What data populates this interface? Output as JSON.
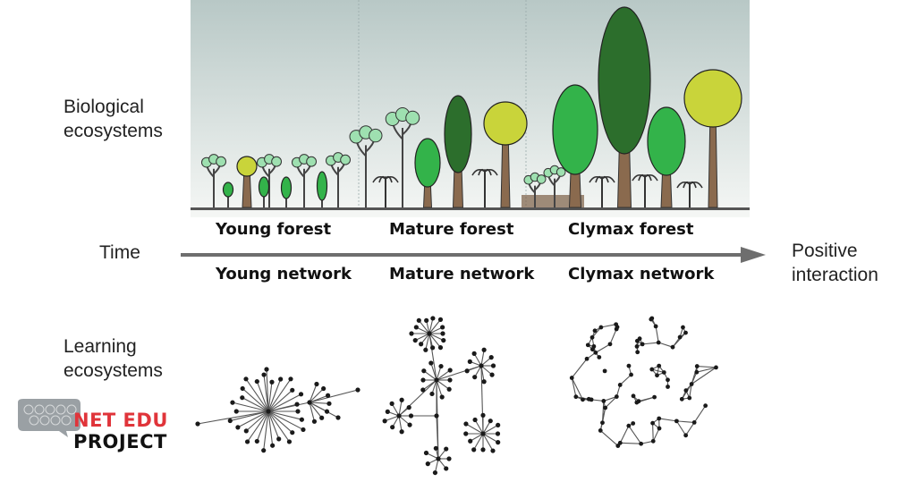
{
  "rows": {
    "biological": "Biological\necosystems",
    "learning": "Learning\necosystems"
  },
  "stages": {
    "forest": [
      "Young forest",
      "Mature forest",
      "Clymax forest"
    ],
    "network": [
      "Young network",
      "Mature network",
      "Clymax network"
    ]
  },
  "time_axis": {
    "label": "Time",
    "end_label": "Positive\ninteraction"
  },
  "logo": {
    "line1": "NET EDU",
    "line2": "PROJECT"
  },
  "colors": {
    "sky_top": "#b8c8c6",
    "sky_bottom": "#f4f6f4",
    "light_leaf": "#9ee0b0",
    "bright_leaf": "#33b34a",
    "dark_leaf": "#2c6e2c",
    "yellow_leaf": "#c9d43a",
    "trunk": "#8a6a4e",
    "arrow": "#6e6e6e",
    "logo_red": "#e0343a",
    "logo_black": "#111111",
    "bubble": "#9aa0a4",
    "node": "#1a1a1a",
    "edge": "#555555"
  }
}
